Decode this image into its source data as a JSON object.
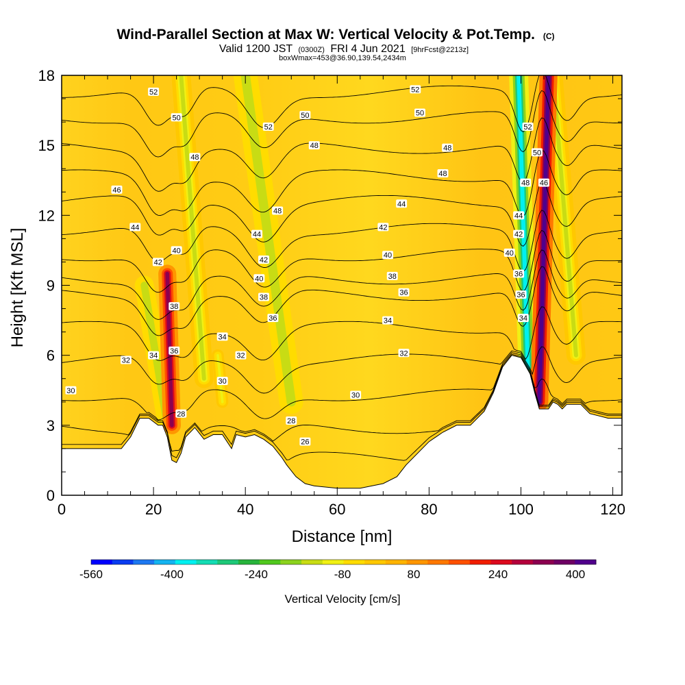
{
  "chart_data": {
    "type": "heatmap",
    "title": "Wind-Parallel Section at Max W: Vertical Velocity & Pot.Temp.",
    "title_mark": "(C)",
    "subtitle_parts": [
      "Valid 1200 JST",
      "(0300Z)",
      "FRI 4 Jun 2021",
      "[9hrFcst@2213z]"
    ],
    "subtitle2": "boxWmax=453@36.90,139.54,2434m",
    "xlabel": "Distance [nm]",
    "ylabel": "Height [Kft MSL]",
    "xlim": [
      0,
      122
    ],
    "ylim": [
      0,
      18
    ],
    "x_ticks": [
      0,
      20,
      40,
      60,
      80,
      100,
      120
    ],
    "y_ticks": [
      0,
      3,
      6,
      9,
      12,
      15,
      18
    ],
    "colorbar": {
      "label": "Vertical Velocity [cm/s]",
      "tick_labels": [
        "-560",
        "-400",
        "-240",
        "-80",
        "80",
        "240",
        "400"
      ],
      "colors": [
        "#0000ff",
        "#0a3cf0",
        "#1e78f0",
        "#14b4f0",
        "#00f0f0",
        "#14dcb4",
        "#1ec878",
        "#28b43c",
        "#50c81e",
        "#8cd21e",
        "#c8dc14",
        "#f0f014",
        "#ffdc00",
        "#ffc800",
        "#ffb400",
        "#ff9600",
        "#ff7800",
        "#ff5000",
        "#f01e00",
        "#dc0a1e",
        "#b4003c",
        "#8c0050",
        "#6e0064",
        "#50008c"
      ]
    },
    "terrain": [
      [
        0,
        2.0
      ],
      [
        5,
        2.0
      ],
      [
        10,
        2.0
      ],
      [
        13,
        2.0
      ],
      [
        15,
        2.5
      ],
      [
        17,
        3.3
      ],
      [
        19,
        3.3
      ],
      [
        21,
        3.0
      ],
      [
        22,
        3.0
      ],
      [
        23,
        2.5
      ],
      [
        24,
        1.5
      ],
      [
        25,
        1.4
      ],
      [
        26,
        1.8
      ],
      [
        27,
        2.5
      ],
      [
        29,
        2.9
      ],
      [
        31,
        2.4
      ],
      [
        33,
        2.6
      ],
      [
        35,
        2.6
      ],
      [
        37,
        2.0
      ],
      [
        38,
        2.6
      ],
      [
        40,
        2.5
      ],
      [
        42,
        2.6
      ],
      [
        44,
        2.4
      ],
      [
        46,
        2.1
      ],
      [
        48,
        1.6
      ],
      [
        49,
        1.3
      ],
      [
        51,
        0.8
      ],
      [
        53,
        0.5
      ],
      [
        55,
        0.4
      ],
      [
        60,
        0.3
      ],
      [
        65,
        0.3
      ],
      [
        70,
        0.5
      ],
      [
        73,
        0.8
      ],
      [
        75,
        1.3
      ],
      [
        78,
        1.9
      ],
      [
        80,
        2.3
      ],
      [
        83,
        2.7
      ],
      [
        86,
        3.0
      ],
      [
        89,
        3.0
      ],
      [
        92,
        3.6
      ],
      [
        94,
        4.4
      ],
      [
        96,
        5.5
      ],
      [
        98,
        6.0
      ],
      [
        100,
        5.9
      ],
      [
        102,
        5.2
      ],
      [
        103,
        4.4
      ],
      [
        104,
        3.7
      ],
      [
        106,
        3.7
      ],
      [
        107,
        4.0
      ],
      [
        108,
        3.9
      ],
      [
        109,
        3.7
      ],
      [
        110,
        3.9
      ],
      [
        112,
        3.9
      ],
      [
        113,
        3.9
      ],
      [
        115,
        3.5
      ],
      [
        117,
        3.4
      ],
      [
        119,
        3.3
      ],
      [
        122,
        3.3
      ]
    ],
    "updraft_bands": [
      {
        "name": "updraft-1",
        "from": [
          24,
          3.0
        ],
        "to": [
          23,
          9.5
        ],
        "width_nm": 1.5,
        "peak_cm_s": 300
      },
      {
        "name": "updraft-2",
        "from": [
          104,
          4.0
        ],
        "to": [
          106,
          18.0
        ],
        "width_nm": 1.5,
        "peak_cm_s": 400
      }
    ],
    "downdraft_bands": [
      {
        "name": "downdraft-1",
        "from": [
          101.5,
          5.5
        ],
        "to": [
          99.5,
          18.0
        ],
        "width_nm": 1.6,
        "peak_cm_s": -400
      },
      {
        "name": "downdraft-2",
        "from": [
          50,
          4.0
        ],
        "to": [
          40,
          18.0
        ],
        "width_nm": 2.0,
        "peak_cm_s": -160
      },
      {
        "name": "downdraft-3",
        "from": [
          23,
          3.0
        ],
        "to": [
          18,
          9.0
        ],
        "width_nm": 1.6,
        "peak_cm_s": -160
      },
      {
        "name": "downdraft-4",
        "from": [
          31,
          5.0
        ],
        "to": [
          26,
          18.0
        ],
        "width_nm": 1.6,
        "peak_cm_s": -140
      },
      {
        "name": "downdraft-5",
        "from": [
          112,
          6.0
        ],
        "to": [
          107,
          18.0
        ],
        "width_nm": 1.6,
        "peak_cm_s": -140
      },
      {
        "name": "downdraft-6",
        "from": [
          35,
          4.0
        ],
        "to": [
          34,
          6.0
        ],
        "width_nm": 1.0,
        "peak_cm_s": -100
      }
    ],
    "contour_base_heights": [
      {
        "theta": 26,
        "h": 1.6
      },
      {
        "theta": 28,
        "h": 2.9
      },
      {
        "theta": 30,
        "h": 4.3
      },
      {
        "theta": 32,
        "h": 5.8
      },
      {
        "theta": 34,
        "h": 7.2
      },
      {
        "theta": 36,
        "h": 8.6
      },
      {
        "theta": 38,
        "h": 9.3
      },
      {
        "theta": 40,
        "h": 10.3
      },
      {
        "theta": 42,
        "h": 11.4
      },
      {
        "theta": 44,
        "h": 12.6
      },
      {
        "theta": 46,
        "h": 13.7
      },
      {
        "theta": 48,
        "h": 14.9
      },
      {
        "theta": 50,
        "h": 16.2
      },
      {
        "theta": 52,
        "h": 17.3
      }
    ],
    "contour_labels": [
      {
        "text": "52",
        "x": 20,
        "y": 17.3
      },
      {
        "text": "50",
        "x": 25,
        "y": 16.2
      },
      {
        "text": "48",
        "x": 29,
        "y": 14.5
      },
      {
        "text": "46",
        "x": 12,
        "y": 13.1
      },
      {
        "text": "44",
        "x": 16,
        "y": 11.5
      },
      {
        "text": "42",
        "x": 21,
        "y": 10.0
      },
      {
        "text": "40",
        "x": 25,
        "y": 10.5
      },
      {
        "text": "38",
        "x": 24.5,
        "y": 8.1
      },
      {
        "text": "36",
        "x": 24.5,
        "y": 6.2
      },
      {
        "text": "34",
        "x": 20,
        "y": 6.0
      },
      {
        "text": "32",
        "x": 14,
        "y": 5.8
      },
      {
        "text": "30",
        "x": 2,
        "y": 4.5
      },
      {
        "text": "28",
        "x": 26,
        "y": 3.5
      },
      {
        "text": "34",
        "x": 35,
        "y": 6.8
      },
      {
        "text": "30",
        "x": 35,
        "y": 4.9
      },
      {
        "text": "32",
        "x": 39,
        "y": 6.0
      },
      {
        "text": "52",
        "x": 45,
        "y": 15.8
      },
      {
        "text": "50",
        "x": 53,
        "y": 16.3
      },
      {
        "text": "48",
        "x": 55,
        "y": 15.0
      },
      {
        "text": "48",
        "x": 47,
        "y": 12.2
      },
      {
        "text": "44",
        "x": 42.5,
        "y": 11.2
      },
      {
        "text": "42",
        "x": 44,
        "y": 10.1
      },
      {
        "text": "40",
        "x": 43,
        "y": 9.3
      },
      {
        "text": "38",
        "x": 44,
        "y": 8.5
      },
      {
        "text": "36",
        "x": 46,
        "y": 7.6
      },
      {
        "text": "28",
        "x": 50,
        "y": 3.2
      },
      {
        "text": "26",
        "x": 53,
        "y": 2.3
      },
      {
        "text": "52",
        "x": 77,
        "y": 17.4
      },
      {
        "text": "50",
        "x": 78,
        "y": 16.4
      },
      {
        "text": "48",
        "x": 84,
        "y": 14.9
      },
      {
        "text": "48",
        "x": 83,
        "y": 13.8
      },
      {
        "text": "44",
        "x": 74,
        "y": 12.5
      },
      {
        "text": "42",
        "x": 70,
        "y": 11.5
      },
      {
        "text": "40",
        "x": 71,
        "y": 10.3
      },
      {
        "text": "38",
        "x": 72,
        "y": 9.4
      },
      {
        "text": "36",
        "x": 74.5,
        "y": 8.7
      },
      {
        "text": "34",
        "x": 71,
        "y": 7.5
      },
      {
        "text": "32",
        "x": 74.5,
        "y": 6.1
      },
      {
        "text": "30",
        "x": 64,
        "y": 4.3
      },
      {
        "text": "52",
        "x": 101.5,
        "y": 15.8
      },
      {
        "text": "50",
        "x": 103.5,
        "y": 14.7
      },
      {
        "text": "48",
        "x": 101,
        "y": 13.4
      },
      {
        "text": "46",
        "x": 105,
        "y": 13.4
      },
      {
        "text": "44",
        "x": 99.5,
        "y": 12.0
      },
      {
        "text": "42",
        "x": 99.5,
        "y": 11.2
      },
      {
        "text": "40",
        "x": 97.5,
        "y": 10.4
      },
      {
        "text": "36",
        "x": 99.5,
        "y": 9.5
      },
      {
        "text": "36",
        "x": 100,
        "y": 8.6
      },
      {
        "text": "34",
        "x": 100.5,
        "y": 7.6
      }
    ]
  }
}
